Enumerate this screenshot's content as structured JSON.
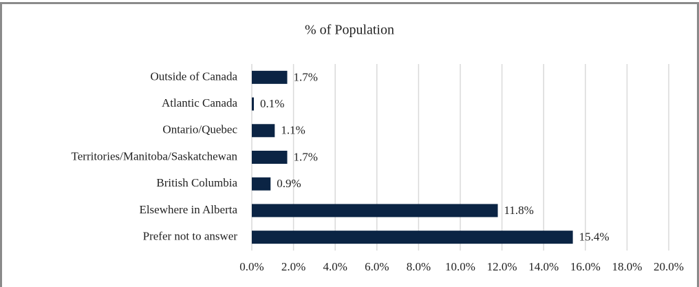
{
  "chart_data": {
    "type": "bar",
    "orientation": "horizontal",
    "title": "% of Population",
    "categories": [
      "Outside of Canada",
      "Atlantic Canada",
      "Ontario/Quebec",
      "Territories/Manitoba/Saskatchewan",
      "British Columbia",
      "Elsewhere in Alberta",
      "Prefer not to answer"
    ],
    "values": [
      1.7,
      0.1,
      1.1,
      1.7,
      0.9,
      11.8,
      15.4
    ],
    "value_labels": [
      "1.7%",
      "0.1%",
      "1.1%",
      "1.7%",
      "0.9%",
      "11.8%",
      "15.4%"
    ],
    "color": "#0b2444",
    "xlim": [
      0,
      20
    ],
    "xticks": [
      {
        "value": 0,
        "label": "0.0%"
      },
      {
        "value": 2,
        "label": "2.0%"
      },
      {
        "value": 4,
        "label": "4.0%"
      },
      {
        "value": 6,
        "label": "6.0%"
      },
      {
        "value": 8,
        "label": "8.0%"
      },
      {
        "value": 10,
        "label": "10.0%"
      },
      {
        "value": 12,
        "label": "12.0%"
      },
      {
        "value": 14,
        "label": "14.0%"
      },
      {
        "value": 16,
        "label": "16.0%"
      },
      {
        "value": 18,
        "label": "18.0%"
      },
      {
        "value": 20,
        "label": "20.0%"
      }
    ],
    "grid": true
  }
}
